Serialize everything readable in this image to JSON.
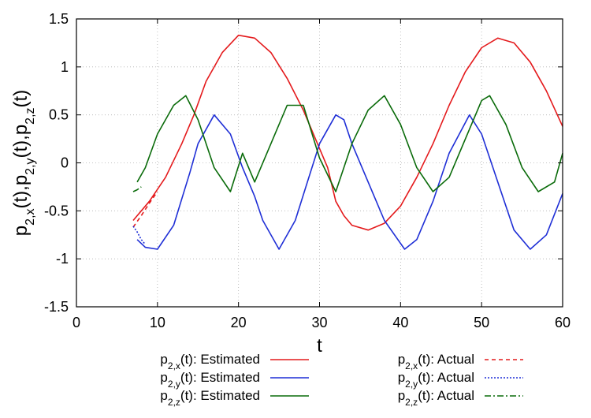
{
  "chart_data": {
    "type": "line",
    "xlabel": "t",
    "ylabel": "p2,x(t),p2,y(t),p2,z(t)",
    "xlim": [
      0,
      60
    ],
    "ylim": [
      -1.5,
      1.5
    ],
    "x_ticks": [
      0,
      10,
      20,
      30,
      40,
      50,
      60
    ],
    "x_tick_labels": [
      "0",
      "10",
      "20",
      "30",
      "40",
      "50",
      "60"
    ],
    "y_ticks": [
      -1.5,
      -1,
      -0.5,
      0,
      0.5,
      1,
      1.5
    ],
    "y_tick_labels": [
      "-1.5",
      "-1",
      "-0.5",
      "0",
      "0.5",
      "1",
      "1.5"
    ],
    "grid": true,
    "legend_position": "bottom",
    "series": [
      {
        "name_base": "p",
        "name_sub": "2,x",
        "name_tail": "(t): Estimated",
        "color": "#e41a1c",
        "dash": "solid",
        "x": [
          7,
          9,
          11,
          13,
          14.5,
          16,
          18,
          20,
          22,
          24,
          26,
          28,
          30,
          31,
          32,
          33,
          34,
          36,
          38,
          40,
          42,
          44,
          46,
          48,
          50,
          52,
          54,
          56,
          58,
          60
        ],
        "y": [
          -0.6,
          -0.4,
          -0.15,
          0.2,
          0.5,
          0.85,
          1.15,
          1.33,
          1.3,
          1.15,
          0.88,
          0.55,
          0.15,
          -0.05,
          -0.4,
          -0.55,
          -0.65,
          -0.7,
          -0.63,
          -0.45,
          -0.15,
          0.2,
          0.6,
          0.95,
          1.2,
          1.3,
          1.25,
          1.05,
          0.75,
          0.38
        ]
      },
      {
        "name_base": "p",
        "name_sub": "2,y",
        "name_tail": "(t): Estimated",
        "color": "#1f2fd6",
        "dash": "solid",
        "x": [
          7.5,
          8.5,
          10,
          12,
          14,
          15,
          17,
          19,
          20.5,
          22,
          23,
          25,
          27,
          28.5,
          30,
          32,
          33,
          34,
          36,
          38,
          40.5,
          42,
          44,
          46,
          48.5,
          50,
          52,
          54,
          56,
          58,
          60
        ],
        "y": [
          -0.8,
          -0.88,
          -0.9,
          -0.65,
          -0.1,
          0.2,
          0.5,
          0.3,
          -0.05,
          -0.35,
          -0.6,
          -0.9,
          -0.6,
          -0.2,
          0.2,
          0.5,
          0.45,
          0.2,
          -0.2,
          -0.6,
          -0.9,
          -0.8,
          -0.4,
          0.1,
          0.5,
          0.3,
          -0.2,
          -0.7,
          -0.9,
          -0.75,
          -0.32
        ]
      },
      {
        "name_base": "p",
        "name_sub": "2,z",
        "name_tail": "(t): Estimated",
        "color": "#0a6b0a",
        "dash": "solid",
        "x": [
          7.5,
          8.5,
          10,
          12,
          13.5,
          15,
          17,
          19,
          20.5,
          22,
          24,
          26,
          28,
          30,
          32,
          34,
          36,
          38,
          40,
          42,
          44,
          46,
          48,
          50,
          51,
          53,
          55,
          57,
          59,
          60
        ],
        "y": [
          -0.2,
          -0.05,
          0.3,
          0.6,
          0.7,
          0.45,
          -0.05,
          -0.3,
          0.1,
          -0.2,
          0.2,
          0.6,
          0.6,
          0.05,
          -0.3,
          0.2,
          0.55,
          0.7,
          0.4,
          -0.05,
          -0.3,
          -0.15,
          0.25,
          0.65,
          0.7,
          0.4,
          -0.05,
          -0.3,
          -0.2,
          0.1
        ]
      },
      {
        "name_base": "p",
        "name_sub": "2,x",
        "name_tail": "(t): Actual",
        "color": "#e41a1c",
        "dash": "5,4",
        "x": [
          7,
          8,
          9,
          10
        ],
        "y": [
          -0.67,
          -0.55,
          -0.42,
          -0.3
        ]
      },
      {
        "name_base": "p",
        "name_sub": "2,y",
        "name_tail": "(t): Actual",
        "color": "#1f2fd6",
        "dash": "2,2",
        "x": [
          7,
          7.5,
          8,
          8.5
        ],
        "y": [
          -0.66,
          -0.72,
          -0.8,
          -0.85
        ]
      },
      {
        "name_base": "p",
        "name_sub": "2,z",
        "name_tail": "(t): Actual",
        "color": "#0a6b0a",
        "dash": "8,3,2,3",
        "x": [
          7,
          7.5,
          8
        ],
        "y": [
          -0.3,
          -0.28,
          -0.25
        ]
      }
    ]
  }
}
